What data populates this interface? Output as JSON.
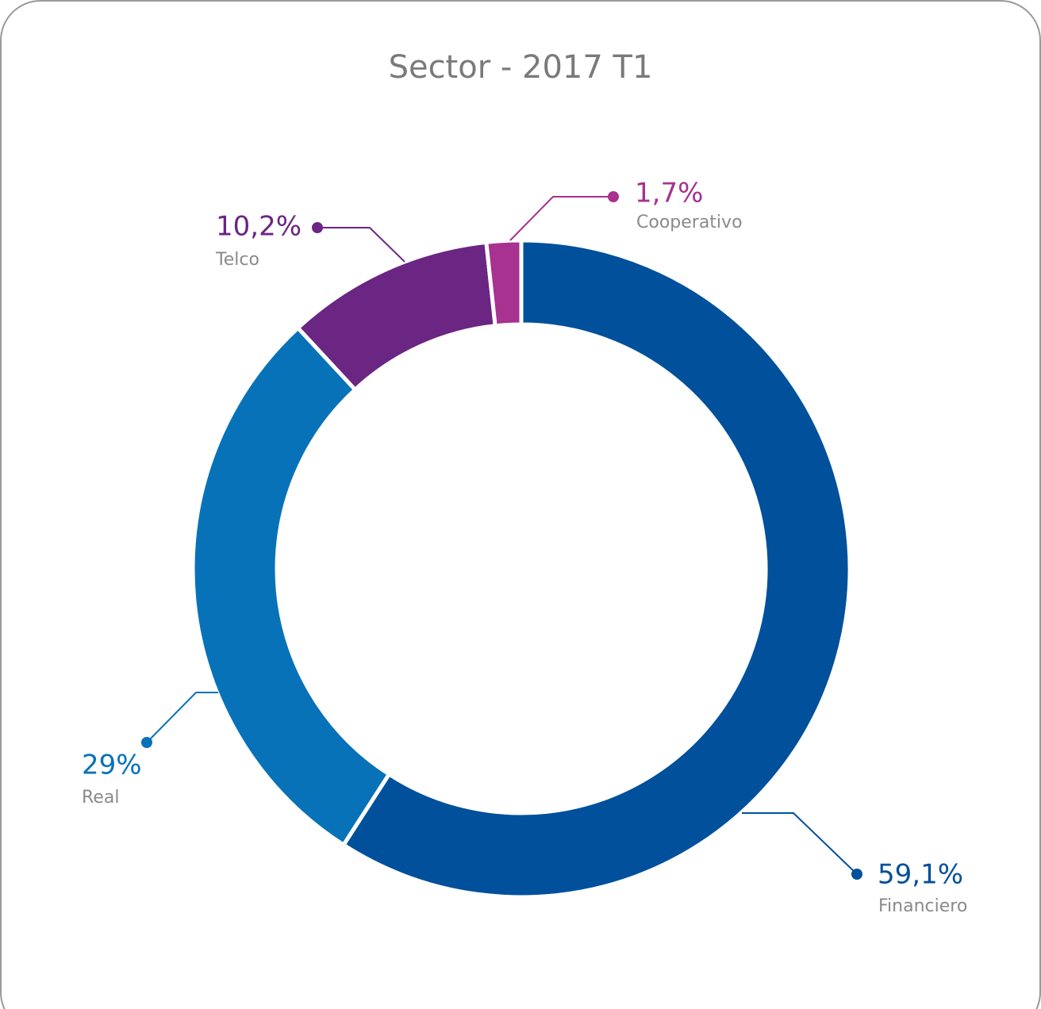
{
  "chart_data": {
    "type": "donut",
    "title": "Sector - 2017 T1",
    "categories": [
      "Financiero",
      "Real",
      "Telco",
      "Cooperativo"
    ],
    "values": [
      59.1,
      29,
      10.2,
      1.7
    ],
    "value_labels": [
      "59,1%",
      "29%",
      "10,2%",
      "1,7%"
    ],
    "colors": [
      "#00509b",
      "#0872b9",
      "#6b2583",
      "#a7328f"
    ]
  }
}
